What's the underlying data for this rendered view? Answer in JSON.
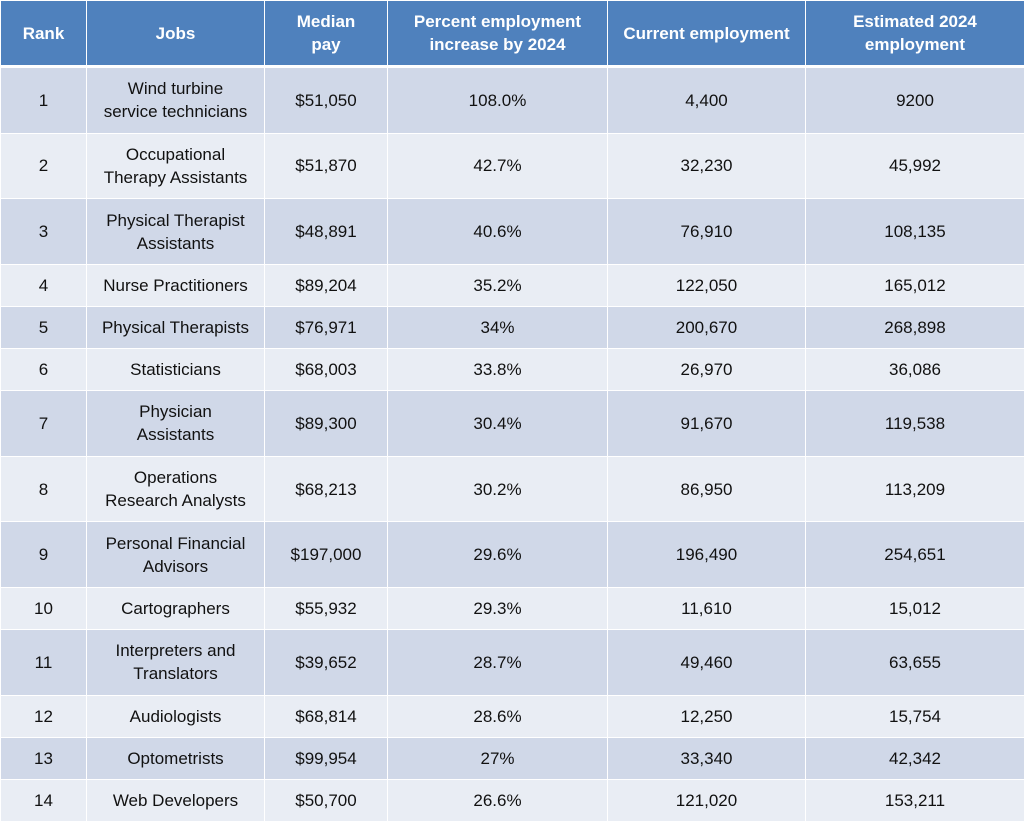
{
  "table": {
    "columns": [
      "Rank",
      "Jobs",
      "Median\npay",
      "Percent employment\nincrease by 2024",
      "Current employment",
      "Estimated 2024\nemployment"
    ],
    "rows": [
      [
        "1",
        "Wind turbine\nservice technicians",
        "$51,050",
        "108.0%",
        "4,400",
        "9200"
      ],
      [
        "2",
        "Occupational\nTherapy Assistants",
        "$51,870",
        "42.7%",
        "32,230",
        "45,992"
      ],
      [
        "3",
        "Physical Therapist\nAssistants",
        "$48,891",
        "40.6%",
        "76,910",
        "108,135"
      ],
      [
        "4",
        "Nurse Practitioners",
        "$89,204",
        "35.2%",
        "122,050",
        "165,012"
      ],
      [
        "5",
        "Physical Therapists",
        "$76,971",
        "34%",
        "200,670",
        "268,898"
      ],
      [
        "6",
        "Statisticians",
        "$68,003",
        "33.8%",
        "26,970",
        "36,086"
      ],
      [
        "7",
        "Physician\nAssistants",
        "$89,300",
        "30.4%",
        "91,670",
        "119,538"
      ],
      [
        "8",
        "Operations\nResearch Analysts",
        "$68,213",
        "30.2%",
        "86,950",
        "113,209"
      ],
      [
        "9",
        "Personal Financial\nAdvisors",
        "$197,000",
        "29.6%",
        "196,490",
        "254,651"
      ],
      [
        "10",
        "Cartographers",
        "$55,932",
        "29.3%",
        "11,610",
        "15,012"
      ],
      [
        "11",
        "Interpreters and\nTranslators",
        "$39,652",
        "28.7%",
        "49,460",
        "63,655"
      ],
      [
        "12",
        "Audiologists",
        "$68,814",
        "28.6%",
        "12,250",
        "15,754"
      ],
      [
        "13",
        "Optometrists",
        "$99,954",
        "27%",
        "33,340",
        "42,342"
      ],
      [
        "14",
        "Web Developers",
        "$50,700",
        "26.6%",
        "121,020",
        "153,211"
      ]
    ]
  },
  "colors": {
    "header_bg": "#4f81bd",
    "row_odd_bg": "#d0d8e8",
    "row_even_bg": "#e9edf4",
    "border": "#ffffff"
  }
}
